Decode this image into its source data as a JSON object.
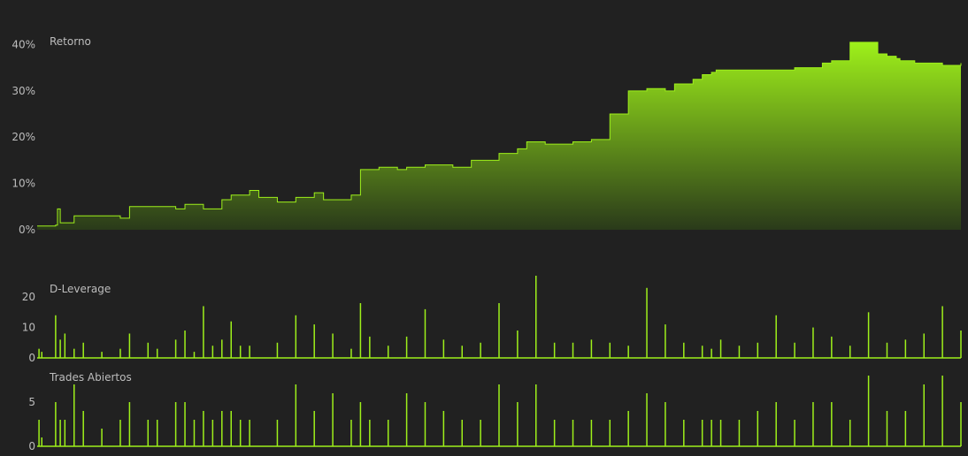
{
  "colors": {
    "background": "#212121",
    "accent": "#9ef01a",
    "fill_top": "#9ef01a",
    "fill_bottom": "#2a3a1a",
    "text": "#bdbdbd"
  },
  "chart_data": [
    {
      "type": "area",
      "title": "Retorno",
      "y_unit": "%",
      "ylim": [
        0,
        42
      ],
      "yticks": [
        0,
        10,
        20,
        30,
        40
      ],
      "ytick_labels": [
        "0%",
        "10%",
        "20%",
        "30%",
        "40%"
      ],
      "grid": false,
      "x": [
        0,
        0.02,
        0.022,
        0.025,
        0.04,
        0.09,
        0.1,
        0.15,
        0.16,
        0.18,
        0.2,
        0.21,
        0.23,
        0.24,
        0.26,
        0.28,
        0.3,
        0.31,
        0.34,
        0.35,
        0.37,
        0.39,
        0.4,
        0.42,
        0.45,
        0.47,
        0.5,
        0.52,
        0.53,
        0.55,
        0.58,
        0.6,
        0.62,
        0.64,
        0.66,
        0.68,
        0.69,
        0.71,
        0.72,
        0.73,
        0.735,
        0.8,
        0.82,
        0.83,
        0.85,
        0.86,
        0.88,
        0.91,
        0.92,
        0.93,
        0.934,
        0.935,
        0.95,
        0.96,
        0.98,
        1.0
      ],
      "y": [
        0.8,
        1.0,
        4.5,
        1.5,
        3.0,
        2.5,
        5.0,
        4.5,
        5.5,
        4.5,
        6.5,
        7.5,
        8.5,
        7.0,
        6.0,
        7.0,
        8.0,
        6.5,
        7.5,
        13.0,
        13.5,
        13.0,
        13.5,
        14.0,
        13.5,
        15.0,
        16.5,
        17.5,
        19.0,
        18.5,
        19.0,
        19.5,
        25.0,
        30.0,
        30.5,
        30.0,
        31.5,
        32.5,
        33.5,
        34.0,
        34.5,
        34.5,
        35.0,
        35.0,
        36.0,
        36.5,
        40.5,
        38.0,
        37.5,
        37.0,
        36.5,
        36.5,
        36.0,
        36.0,
        35.5,
        36.0
      ]
    },
    {
      "type": "line",
      "title": "D-Leverage",
      "ylim": [
        0,
        27
      ],
      "yticks": [
        0,
        10,
        20
      ],
      "ytick_labels": [
        "0",
        "10",
        "20"
      ],
      "grid": false,
      "x": [
        0.002,
        0.005,
        0.02,
        0.025,
        0.03,
        0.04,
        0.05,
        0.07,
        0.09,
        0.1,
        0.12,
        0.13,
        0.15,
        0.16,
        0.17,
        0.18,
        0.19,
        0.2,
        0.21,
        0.22,
        0.23,
        0.26,
        0.28,
        0.3,
        0.32,
        0.34,
        0.35,
        0.36,
        0.38,
        0.4,
        0.42,
        0.44,
        0.46,
        0.48,
        0.5,
        0.52,
        0.54,
        0.56,
        0.58,
        0.6,
        0.62,
        0.64,
        0.66,
        0.68,
        0.7,
        0.72,
        0.73,
        0.74,
        0.76,
        0.78,
        0.8,
        0.82,
        0.84,
        0.86,
        0.88,
        0.9,
        0.92,
        0.94,
        0.96,
        0.98,
        1.0
      ],
      "y": [
        3,
        2,
        14,
        6,
        8,
        3,
        5,
        2,
        3,
        8,
        5,
        3,
        6,
        9,
        2,
        17,
        4,
        6,
        12,
        4,
        4,
        5,
        14,
        11,
        8,
        3,
        18,
        7,
        4,
        7,
        16,
        6,
        4,
        5,
        18,
        9,
        27,
        5,
        5,
        6,
        5,
        4,
        23,
        11,
        5,
        4,
        3,
        6,
        4,
        5,
        14,
        5,
        10,
        7,
        4,
        15,
        5,
        6,
        8,
        17,
        9
      ]
    },
    {
      "type": "line",
      "title": "Trades Abiertos",
      "ylim": [
        0,
        8
      ],
      "yticks": [
        0,
        5
      ],
      "ytick_labels": [
        "0",
        "5"
      ],
      "grid": false,
      "x": [
        0.002,
        0.005,
        0.02,
        0.025,
        0.03,
        0.04,
        0.05,
        0.07,
        0.09,
        0.1,
        0.12,
        0.13,
        0.15,
        0.16,
        0.17,
        0.18,
        0.19,
        0.2,
        0.21,
        0.22,
        0.23,
        0.26,
        0.28,
        0.3,
        0.32,
        0.34,
        0.35,
        0.36,
        0.38,
        0.4,
        0.42,
        0.44,
        0.46,
        0.48,
        0.5,
        0.52,
        0.54,
        0.56,
        0.58,
        0.6,
        0.62,
        0.64,
        0.66,
        0.68,
        0.7,
        0.72,
        0.73,
        0.74,
        0.76,
        0.78,
        0.8,
        0.82,
        0.84,
        0.86,
        0.88,
        0.9,
        0.92,
        0.94,
        0.96,
        0.98,
        1.0
      ],
      "y": [
        3,
        1,
        5,
        3,
        3,
        7,
        4,
        2,
        3,
        5,
        3,
        3,
        5,
        5,
        3,
        4,
        3,
        4,
        4,
        3,
        3,
        3,
        7,
        4,
        6,
        3,
        5,
        3,
        3,
        6,
        5,
        4,
        3,
        3,
        7,
        5,
        7,
        3,
        3,
        3,
        3,
        4,
        6,
        5,
        3,
        3,
        3,
        3,
        3,
        4,
        5,
        3,
        5,
        5,
        3,
        8,
        4,
        4,
        7,
        8,
        5
      ]
    }
  ]
}
